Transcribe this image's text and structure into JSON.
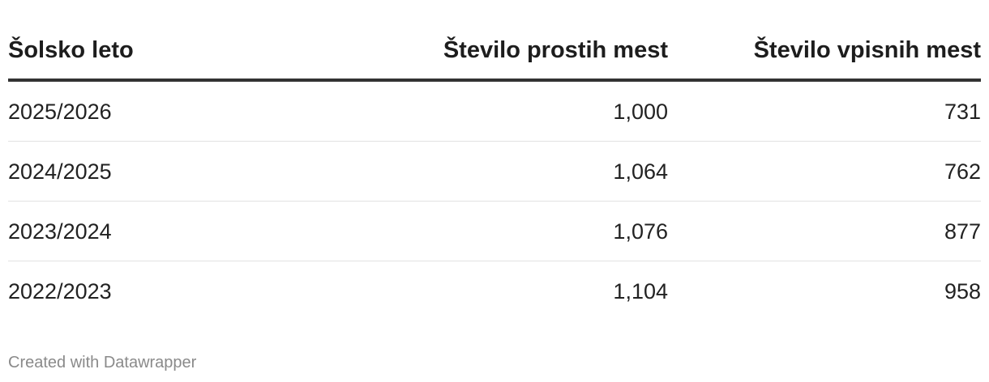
{
  "table": {
    "header": [
      "Šolsko leto",
      "Število prostih mest",
      "Število vpisnih mest"
    ],
    "rows": [
      [
        "2025/2026",
        "1,000",
        "731"
      ],
      [
        "2024/2025",
        "1,064",
        "762"
      ],
      [
        "2023/2024",
        "1,076",
        "877"
      ],
      [
        "2022/2023",
        "1,104",
        "958"
      ]
    ]
  },
  "footer": "Created with Datawrapper"
}
